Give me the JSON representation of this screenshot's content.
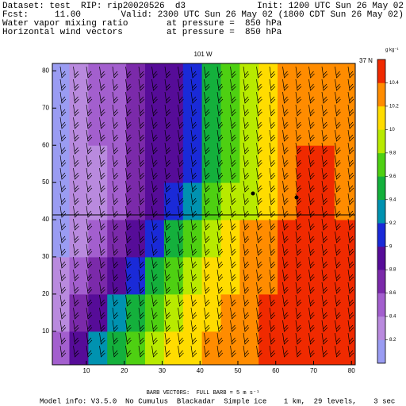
{
  "header": {
    "dataset": "Dataset: test  RIP: rip20020526  d3",
    "init": "Init: 1200 UTC Sun 26 May 02",
    "fcst": "Fcst:     11.00",
    "valid": "Valid: 2300 UTC Sun 26 May 02 (1800 CDT Sun 26 May 02)",
    "field_1": "Water vapor mixing ratio",
    "level_1": "at pressure =  850 hPa",
    "field_2": "Horizontal wind vectors",
    "level_2": "at pressure =  850 hPa"
  },
  "chart_data": {
    "type": "contour",
    "title": "101 W",
    "corner_label": "37 N",
    "x": [
      3,
      8,
      13,
      18,
      23,
      28,
      33,
      38,
      43,
      48,
      53,
      58,
      63,
      68,
      73,
      78
    ],
    "y": [
      5,
      15,
      25,
      35,
      45,
      55,
      65,
      75
    ],
    "values": [
      [
        8.5,
        8.9,
        9.3,
        9.5,
        9.7,
        9.9,
        10.0,
        10.1,
        10.2,
        10.3,
        10.3,
        10.4,
        10.45,
        10.45,
        10.45,
        10.45
      ],
      [
        8.3,
        8.6,
        8.9,
        9.2,
        9.5,
        9.7,
        9.9,
        10.0,
        10.1,
        10.2,
        10.3,
        10.4,
        10.45,
        10.45,
        10.45,
        10.45
      ],
      [
        8.2,
        8.4,
        8.6,
        8.8,
        9.1,
        9.4,
        9.7,
        9.9,
        10.0,
        10.1,
        10.2,
        10.3,
        10.4,
        10.45,
        10.45,
        10.45
      ],
      [
        8.1,
        8.3,
        8.4,
        8.6,
        8.9,
        9.1,
        9.4,
        9.6,
        9.9,
        10.0,
        10.2,
        10.3,
        10.4,
        10.45,
        10.45,
        10.4
      ],
      [
        8.1,
        8.3,
        8.3,
        8.5,
        8.7,
        8.8,
        9.0,
        9.2,
        9.6,
        9.8,
        9.9,
        10.1,
        10.3,
        10.45,
        10.4,
        10.3
      ],
      [
        8.1,
        8.3,
        8.3,
        8.5,
        8.7,
        8.8,
        8.9,
        9.0,
        9.5,
        9.7,
        9.9,
        10.1,
        10.3,
        10.45,
        10.45,
        10.3
      ],
      [
        8.1,
        8.3,
        8.4,
        8.5,
        8.7,
        8.8,
        8.9,
        9.0,
        9.4,
        9.7,
        9.9,
        10.1,
        10.2,
        10.3,
        10.3,
        10.3
      ],
      [
        8.1,
        8.3,
        8.4,
        8.5,
        8.7,
        8.8,
        8.9,
        9.1,
        9.4,
        9.6,
        9.8,
        10.0,
        10.2,
        10.3,
        10.3,
        10.3
      ]
    ],
    "xlim": [
      1,
      81
    ],
    "ylim": [
      1,
      82
    ],
    "xticks": [
      10,
      20,
      30,
      40,
      50,
      60,
      70,
      80
    ],
    "yticks": [
      10,
      20,
      30,
      40,
      50,
      60,
      70,
      80
    ],
    "levels": [
      8,
      8.2,
      8.4,
      8.6,
      8.8,
      9,
      9.2,
      9.4,
      9.6,
      9.8,
      10,
      10.2,
      10.4,
      10.6
    ],
    "level_colors": [
      "#9a9cf2",
      "#b98ade",
      "#a35fce",
      "#7b2aaa",
      "#560c98",
      "#1a2ad8",
      "#0092b0",
      "#14b03c",
      "#4ed012",
      "#b8ea00",
      "#ffdc00",
      "#ff8c00",
      "#f02a00"
    ],
    "colorbar_ticks": [
      8.2,
      8.4,
      8.6,
      8.8,
      9,
      9.2,
      9.4,
      9.6,
      9.8,
      10,
      10.2,
      10.4
    ],
    "colorbar_label": "g kg⁻¹"
  },
  "footer": {
    "barb_legend": "BARB VECTORS:  FULL BARB = 5 m s⁻¹",
    "model_info": "Model info: V3.5.0  No Cumulus  Blackadar  Simple ice    1 km,  29 levels,    3 sec"
  }
}
